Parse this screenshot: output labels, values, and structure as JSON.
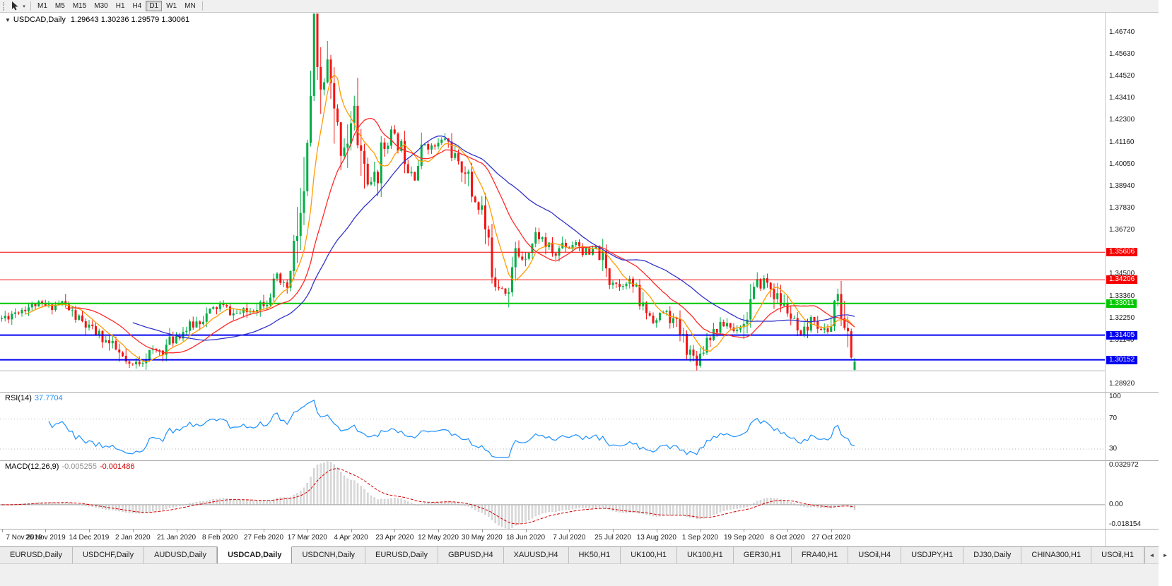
{
  "toolbar": {
    "caret": "▾",
    "timeframes": [
      {
        "label": "M1",
        "active": false
      },
      {
        "label": "M5",
        "active": false
      },
      {
        "label": "M15",
        "active": false
      },
      {
        "label": "M30",
        "active": false
      },
      {
        "label": "H1",
        "active": false
      },
      {
        "label": "H4",
        "active": false
      },
      {
        "label": "D1",
        "active": true
      },
      {
        "label": "W1",
        "active": false
      },
      {
        "label": "MN",
        "active": false
      }
    ]
  },
  "header": {
    "caret": "▼",
    "symbol": "USDCAD,Daily",
    "ohlc": "1.29643 1.30236 1.29579 1.30061"
  },
  "price_axis": {
    "labels": [
      "1.46740",
      "1.45630",
      "1.44520",
      "1.43410",
      "1.42300",
      "1.41160",
      "1.40050",
      "1.38940",
      "1.37830",
      "1.36720",
      "1.34500",
      "1.33360",
      "1.32250",
      "1.31140",
      "1.28920"
    ]
  },
  "rsi": {
    "name": "RSI(14)",
    "value": "37.7704",
    "color": "#1e90ff",
    "axis_labels": [
      {
        "text": "100",
        "value": 100
      },
      {
        "text": "70",
        "value": 70
      },
      {
        "text": "30",
        "value": 30
      }
    ],
    "levels": [
      70,
      30
    ]
  },
  "macd": {
    "name": "MACD(12,26,9)",
    "main_value": "-0.005255",
    "signal_value": "-0.001486",
    "hist_color": "#8f8f8f",
    "signal_color": "#d40000",
    "axis_labels": [
      {
        "text": "0.032972",
        "value": 0.032972
      },
      {
        "text": "0.00",
        "value": 0
      },
      {
        "text": "-0.018154",
        "value": -0.018154
      }
    ]
  },
  "date_axis": [
    "7 Nov 2019",
    "26 Nov 2019",
    "14 Dec 2019",
    "2 Jan 2020",
    "21 Jan 2020",
    "8 Feb 2020",
    "27 Feb 2020",
    "17 Mar 2020",
    "4 Apr 2020",
    "23 Apr 2020",
    "12 May 2020",
    "30 May 2020",
    "18 Jun 2020",
    "7 Jul 2020",
    "25 Jul 2020",
    "13 Aug 2020",
    "1 Sep 2020",
    "19 Sep 2020",
    "8 Oct 2020",
    "27 Oct 2020"
  ],
  "tabs": [
    {
      "label": "EURUSD,Daily",
      "active": false
    },
    {
      "label": "USDCHF,Daily",
      "active": false
    },
    {
      "label": "AUDUSD,Daily",
      "active": false
    },
    {
      "label": "USDCAD,Daily",
      "active": true
    },
    {
      "label": "USDCNH,Daily",
      "active": false
    },
    {
      "label": "EURUSD,Daily",
      "active": false
    },
    {
      "label": "GBPUSD,H4",
      "active": false
    },
    {
      "label": "XAUUSD,H4",
      "active": false
    },
    {
      "label": "HK50,H1",
      "active": false
    },
    {
      "label": "UK100,H1",
      "active": false
    },
    {
      "label": "UK100,H1",
      "active": false
    },
    {
      "label": "GER30,H1",
      "active": false
    },
    {
      "label": "FRA40,H1",
      "active": false
    },
    {
      "label": "USOil,H4",
      "active": false
    },
    {
      "label": "USDJPY,H1",
      "active": false
    },
    {
      "label": "DJ30,Daily",
      "active": false
    },
    {
      "label": "CHINA300,H1",
      "active": false
    },
    {
      "label": "USOil,H1",
      "active": false
    }
  ],
  "tab_scroll": {
    "left": "◄",
    "right": "►"
  },
  "chart_data": {
    "type": "candlestick",
    "symbol": "USDCAD",
    "timeframe": "Daily",
    "last_ohlc": {
      "open": 1.29643,
      "high": 1.30236,
      "low": 1.29579,
      "close": 1.30061
    },
    "bars_count": 255,
    "bar_spacing": 4.75,
    "seed": 11,
    "price_max": 1.4774,
    "price_min": 1.2853,
    "up_color": "#00ae45",
    "down_color": "#f51515",
    "anchors": [
      [
        0,
        1.3225
      ],
      [
        5,
        1.3268
      ],
      [
        10,
        1.3296
      ],
      [
        14,
        1.3282
      ],
      [
        18,
        1.3306
      ],
      [
        22,
        1.3232
      ],
      [
        26,
        1.3172
      ],
      [
        30,
        1.3128
      ],
      [
        34,
        1.3062
      ],
      [
        38,
        1.2976
      ],
      [
        40,
        1.2996
      ],
      [
        44,
        1.3052
      ],
      [
        48,
        1.3066
      ],
      [
        52,
        1.314
      ],
      [
        56,
        1.3182
      ],
      [
        60,
        1.323
      ],
      [
        65,
        1.3292
      ],
      [
        69,
        1.3248
      ],
      [
        73,
        1.3258
      ],
      [
        77,
        1.3304
      ],
      [
        79,
        1.333
      ],
      [
        82,
        1.3432
      ],
      [
        84,
        1.3374
      ],
      [
        86,
        1.3424
      ],
      [
        88,
        1.3664
      ],
      [
        90,
        1.379
      ],
      [
        91,
        1.405
      ],
      [
        93,
        1.464
      ],
      [
        94,
        1.444
      ],
      [
        95,
        1.437
      ],
      [
        97,
        1.449
      ],
      [
        99,
        1.421
      ],
      [
        101,
        1.409
      ],
      [
        103,
        1.415
      ],
      [
        105,
        1.4255
      ],
      [
        107,
        1.406
      ],
      [
        110,
        1.388
      ],
      [
        112,
        1.403
      ],
      [
        114,
        1.41
      ],
      [
        116,
        1.417
      ],
      [
        117,
        1.4135
      ],
      [
        119,
        1.409
      ],
      [
        121,
        1.401
      ],
      [
        123,
        1.3955
      ],
      [
        126,
        1.412
      ],
      [
        128,
        1.409
      ],
      [
        130,
        1.4105
      ],
      [
        132,
        1.414
      ],
      [
        134,
        1.408
      ],
      [
        136,
        1.3985
      ],
      [
        138,
        1.3995
      ],
      [
        140,
        1.3855
      ],
      [
        143,
        1.378
      ],
      [
        145,
        1.3565
      ],
      [
        147,
        1.3425
      ],
      [
        149,
        1.3395
      ],
      [
        151,
        1.3355
      ],
      [
        153,
        1.356
      ],
      [
        155,
        1.3535
      ],
      [
        156,
        1.3555
      ],
      [
        158,
        1.3605
      ],
      [
        159,
        1.365
      ],
      [
        161,
        1.3625
      ],
      [
        163,
        1.3575
      ],
      [
        165,
        1.3545
      ],
      [
        167,
        1.361
      ],
      [
        169,
        1.3585
      ],
      [
        171,
        1.362
      ],
      [
        173,
        1.3575
      ],
      [
        175,
        1.3545
      ],
      [
        177,
        1.358
      ],
      [
        179,
        1.3515
      ],
      [
        181,
        1.3415
      ],
      [
        182,
        1.3435
      ],
      [
        184,
        1.3385
      ],
      [
        186,
        1.342
      ],
      [
        188,
        1.3392
      ],
      [
        190,
        1.3305
      ],
      [
        192,
        1.3262
      ],
      [
        194,
        1.3225
      ],
      [
        195,
        1.3212
      ],
      [
        197,
        1.3262
      ],
      [
        199,
        1.3232
      ],
      [
        201,
        1.3182
      ],
      [
        203,
        1.3122
      ],
      [
        205,
        1.3052
      ],
      [
        207,
        1.3012
      ],
      [
        208,
        1.3042
      ],
      [
        210,
        1.3132
      ],
      [
        212,
        1.3162
      ],
      [
        214,
        1.3182
      ],
      [
        216,
        1.3202
      ],
      [
        218,
        1.3162
      ],
      [
        220,
        1.3202
      ],
      [
        221,
        1.3192
      ],
      [
        223,
        1.3312
      ],
      [
        225,
        1.3382
      ],
      [
        227,
        1.3422
      ],
      [
        229,
        1.3382
      ],
      [
        231,
        1.3322
      ],
      [
        233,
        1.3282
      ],
      [
        234,
        1.3272
      ],
      [
        236,
        1.3182
      ],
      [
        238,
        1.3122
      ],
      [
        240,
        1.3182
      ],
      [
        242,
        1.3232
      ],
      [
        244,
        1.3152
      ],
      [
        246,
        1.3182
      ],
      [
        247,
        1.3202
      ],
      [
        248,
        1.3312
      ],
      [
        249,
        1.3332
      ],
      [
        250,
        1.3252
      ],
      [
        251,
        1.3182
      ],
      [
        252,
        1.3122
      ],
      [
        253,
        1.3052
      ],
      [
        254,
        1.3006
      ]
    ],
    "moving_averages": [
      {
        "period": 8,
        "color": "#ff9c00"
      },
      {
        "period": 20,
        "color": "#ff2a2a"
      },
      {
        "period": 40,
        "color": "#3333cc"
      }
    ],
    "hlines": [
      {
        "price": 1.35606,
        "label": "1.35606",
        "color": "#f40000",
        "width": 1
      },
      {
        "price": 1.34206,
        "label": "1.34206",
        "color": "#f40000",
        "width": 1
      },
      {
        "price": 1.33011,
        "label": "1.33011",
        "color": "#00c800",
        "width": 2
      },
      {
        "price": 1.31405,
        "label": "1.31405",
        "color": "#0000f0",
        "width": 2
      },
      {
        "price": 1.30152,
        "label": "1.30152",
        "color": "#0000f0",
        "width": 2
      },
      {
        "price": 1.296,
        "label": null,
        "color": "#b8b8b8",
        "width": 1
      }
    ],
    "rsi_period": 14,
    "macd_params": [
      12,
      26,
      9
    ],
    "macd_range": [
      -0.018154,
      0.032972
    ],
    "rsi_range": [
      15,
      105
    ]
  }
}
